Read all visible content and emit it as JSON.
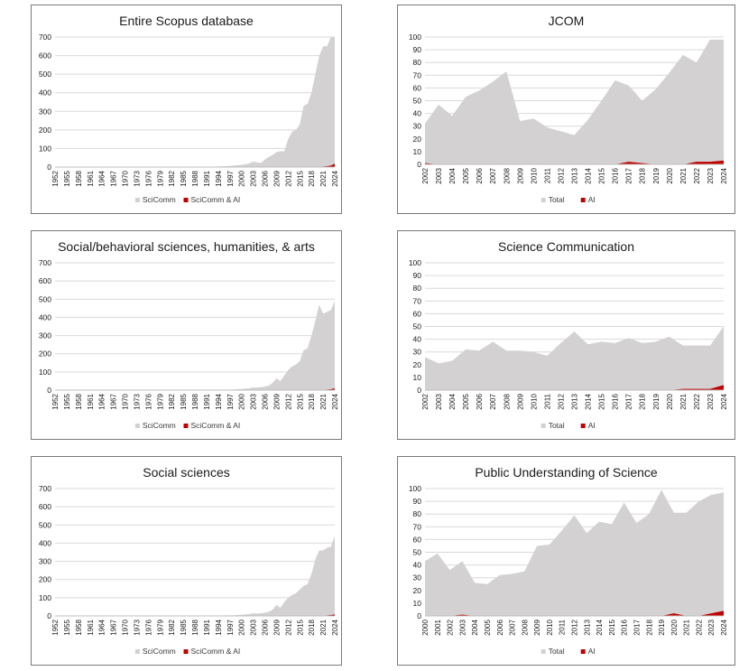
{
  "chart_data": [
    {
      "type": "area",
      "title": "Entire Scopus database",
      "ylim": [
        0,
        700
      ],
      "yticks": [
        0,
        100,
        200,
        300,
        400,
        500,
        600,
        700
      ],
      "grid": true,
      "legend_position": "bottom",
      "x": [
        1952,
        1953,
        1954,
        1955,
        1956,
        1957,
        1958,
        1959,
        1960,
        1961,
        1962,
        1963,
        1964,
        1965,
        1966,
        1967,
        1968,
        1969,
        1970,
        1971,
        1972,
        1973,
        1974,
        1975,
        1976,
        1977,
        1978,
        1979,
        1980,
        1981,
        1982,
        1983,
        1984,
        1985,
        1986,
        1987,
        1988,
        1989,
        1990,
        1991,
        1992,
        1993,
        1994,
        1995,
        1996,
        1997,
        1998,
        1999,
        2000,
        2001,
        2002,
        2003,
        2004,
        2005,
        2006,
        2007,
        2008,
        2009,
        2010,
        2011,
        2012,
        2013,
        2014,
        2015,
        2016,
        2017,
        2018,
        2019,
        2020,
        2021,
        2022,
        2023,
        2024
      ],
      "xticks": [
        1952,
        1955,
        1958,
        1961,
        1964,
        1967,
        1970,
        1973,
        1976,
        1979,
        1982,
        1985,
        1988,
        1991,
        1994,
        1997,
        2000,
        2003,
        2006,
        2009,
        2012,
        2015,
        2018,
        2021,
        2024
      ],
      "series": [
        {
          "name": "SciComm",
          "values": [
            0,
            0,
            0,
            0,
            0,
            0,
            0,
            0,
            0,
            0,
            0,
            0,
            0,
            0,
            0,
            0,
            0,
            0,
            0,
            0,
            0,
            0,
            0,
            0,
            0,
            0,
            0,
            0,
            0,
            0,
            0,
            0,
            0,
            0,
            0,
            0,
            0,
            0,
            0,
            1,
            1,
            2,
            3,
            4,
            5,
            6,
            8,
            10,
            12,
            15,
            20,
            30,
            25,
            22,
            40,
            55,
            65,
            80,
            85,
            85,
            150,
            190,
            200,
            230,
            330,
            340,
            400,
            500,
            600,
            650,
            650,
            700,
            700
          ]
        },
        {
          "name": "SciComm & AI",
          "values": [
            0,
            0,
            0,
            0,
            0,
            0,
            0,
            0,
            0,
            0,
            0,
            0,
            0,
            0,
            0,
            0,
            0,
            0,
            0,
            0,
            0,
            0,
            0,
            0,
            0,
            0,
            0,
            0,
            0,
            0,
            0,
            0,
            0,
            0,
            0,
            0,
            0,
            0,
            0,
            0,
            0,
            0,
            0,
            0,
            0,
            0,
            0,
            0,
            0,
            0,
            0,
            0,
            0,
            0,
            0,
            0,
            0,
            0,
            0,
            0,
            0,
            0,
            0,
            0,
            0,
            0,
            1,
            1,
            2,
            3,
            5,
            8,
            18
          ]
        }
      ]
    },
    {
      "type": "area",
      "title": "JCOM",
      "ylim": [
        0,
        100
      ],
      "yticks": [
        0,
        10,
        20,
        30,
        40,
        50,
        60,
        70,
        80,
        90,
        100
      ],
      "grid": true,
      "legend_position": "bottom",
      "x": [
        2002,
        2003,
        2004,
        2005,
        2006,
        2007,
        2008,
        2009,
        2010,
        2011,
        2012,
        2013,
        2014,
        2015,
        2016,
        2017,
        2018,
        2019,
        2020,
        2021,
        2022,
        2023,
        2024
      ],
      "xticks": [
        2002,
        2003,
        2004,
        2005,
        2006,
        2007,
        2008,
        2009,
        2010,
        2011,
        2012,
        2013,
        2014,
        2015,
        2016,
        2017,
        2018,
        2019,
        2020,
        2021,
        2022,
        2023,
        2024
      ],
      "series": [
        {
          "name": "Total",
          "values": [
            32,
            47,
            38,
            53,
            58,
            65,
            73,
            34,
            36,
            29,
            26,
            23,
            35,
            50,
            66,
            62,
            50,
            59,
            72,
            86,
            80,
            98,
            98
          ]
        },
        {
          "name": "AI",
          "values": [
            1,
            0,
            0,
            0,
            0,
            0,
            0,
            0,
            0,
            0,
            0,
            0,
            0,
            0,
            0,
            2,
            1,
            0,
            0,
            0,
            2,
            2,
            3
          ]
        }
      ]
    },
    {
      "type": "area",
      "title": "Social/behavioral sciences, humanities, & arts",
      "ylim": [
        0,
        700
      ],
      "yticks": [
        0,
        100,
        200,
        300,
        400,
        500,
        600,
        700
      ],
      "grid": true,
      "legend_position": "bottom",
      "x": [
        1952,
        1953,
        1954,
        1955,
        1956,
        1957,
        1958,
        1959,
        1960,
        1961,
        1962,
        1963,
        1964,
        1965,
        1966,
        1967,
        1968,
        1969,
        1970,
        1971,
        1972,
        1973,
        1974,
        1975,
        1976,
        1977,
        1978,
        1979,
        1980,
        1981,
        1982,
        1983,
        1984,
        1985,
        1986,
        1987,
        1988,
        1989,
        1990,
        1991,
        1992,
        1993,
        1994,
        1995,
        1996,
        1997,
        1998,
        1999,
        2000,
        2001,
        2002,
        2003,
        2004,
        2005,
        2006,
        2007,
        2008,
        2009,
        2010,
        2011,
        2012,
        2013,
        2014,
        2015,
        2016,
        2017,
        2018,
        2019,
        2020,
        2021,
        2022,
        2023,
        2024
      ],
      "xticks": [
        1952,
        1955,
        1958,
        1961,
        1964,
        1967,
        1970,
        1973,
        1976,
        1979,
        1982,
        1985,
        1988,
        1991,
        1994,
        1997,
        2000,
        2003,
        2006,
        2009,
        2012,
        2015,
        2018,
        2021,
        2024
      ],
      "series": [
        {
          "name": "SciComm",
          "values": [
            0,
            0,
            0,
            0,
            0,
            0,
            0,
            0,
            0,
            0,
            0,
            0,
            0,
            0,
            0,
            0,
            0,
            0,
            0,
            0,
            0,
            0,
            0,
            0,
            0,
            0,
            0,
            0,
            0,
            0,
            0,
            0,
            0,
            0,
            0,
            0,
            0,
            0,
            0,
            0,
            1,
            1,
            2,
            2,
            3,
            3,
            4,
            5,
            6,
            8,
            10,
            15,
            14,
            16,
            20,
            25,
            40,
            65,
            50,
            80,
            110,
            130,
            140,
            160,
            220,
            230,
            300,
            380,
            470,
            420,
            430,
            440,
            490
          ]
        },
        {
          "name": "SciComm & AI",
          "values": [
            0,
            0,
            0,
            0,
            0,
            0,
            0,
            0,
            0,
            0,
            0,
            0,
            0,
            0,
            0,
            0,
            0,
            0,
            0,
            0,
            0,
            0,
            0,
            0,
            0,
            0,
            0,
            0,
            0,
            0,
            0,
            0,
            0,
            0,
            0,
            0,
            0,
            0,
            0,
            0,
            0,
            0,
            0,
            0,
            0,
            0,
            0,
            0,
            0,
            0,
            0,
            0,
            0,
            0,
            0,
            0,
            0,
            0,
            0,
            0,
            0,
            0,
            0,
            0,
            0,
            0,
            0,
            1,
            1,
            2,
            3,
            5,
            10
          ]
        }
      ]
    },
    {
      "type": "area",
      "title": "Science Communication",
      "ylim": [
        0,
        100
      ],
      "yticks": [
        0,
        10,
        20,
        30,
        40,
        50,
        60,
        70,
        80,
        90,
        100
      ],
      "grid": true,
      "legend_position": "bottom",
      "x": [
        2002,
        2003,
        2004,
        2005,
        2006,
        2007,
        2008,
        2009,
        2010,
        2011,
        2012,
        2013,
        2014,
        2015,
        2016,
        2017,
        2018,
        2019,
        2020,
        2021,
        2022,
        2023,
        2024
      ],
      "xticks": [
        2002,
        2003,
        2004,
        2005,
        2006,
        2007,
        2008,
        2009,
        2010,
        2011,
        2012,
        2013,
        2014,
        2015,
        2016,
        2017,
        2018,
        2019,
        2020,
        2021,
        2022,
        2023,
        2024
      ],
      "series": [
        {
          "name": "Total",
          "values": [
            26,
            21,
            23,
            32,
            31,
            38,
            31,
            31,
            30,
            27,
            37,
            46,
            36,
            38,
            37,
            41,
            37,
            38,
            42,
            35,
            35,
            35,
            50
          ]
        },
        {
          "name": "AI",
          "values": [
            0,
            0,
            0,
            0,
            0,
            0,
            0,
            0,
            0,
            0,
            0,
            0,
            0,
            0,
            0,
            0,
            0,
            0,
            0,
            1,
            1,
            1,
            4
          ]
        }
      ]
    },
    {
      "type": "area",
      "title": "Social sciences",
      "ylim": [
        0,
        700
      ],
      "yticks": [
        0,
        100,
        200,
        300,
        400,
        500,
        600,
        700
      ],
      "grid": true,
      "legend_position": "bottom",
      "x": [
        1952,
        1953,
        1954,
        1955,
        1956,
        1957,
        1958,
        1959,
        1960,
        1961,
        1962,
        1963,
        1964,
        1965,
        1966,
        1967,
        1968,
        1969,
        1970,
        1971,
        1972,
        1973,
        1974,
        1975,
        1976,
        1977,
        1978,
        1979,
        1980,
        1981,
        1982,
        1983,
        1984,
        1985,
        1986,
        1987,
        1988,
        1989,
        1990,
        1991,
        1992,
        1993,
        1994,
        1995,
        1996,
        1997,
        1998,
        1999,
        2000,
        2001,
        2002,
        2003,
        2004,
        2005,
        2006,
        2007,
        2008,
        2009,
        2010,
        2011,
        2012,
        2013,
        2014,
        2015,
        2016,
        2017,
        2018,
        2019,
        2020,
        2021,
        2022,
        2023,
        2024
      ],
      "xticks": [
        1952,
        1955,
        1958,
        1961,
        1964,
        1967,
        1970,
        1973,
        1976,
        1979,
        1982,
        1985,
        1988,
        1991,
        1994,
        1997,
        2000,
        2003,
        2006,
        2009,
        2012,
        2015,
        2018,
        2021,
        2024
      ],
      "series": [
        {
          "name": "SciComm",
          "values": [
            0,
            0,
            0,
            0,
            0,
            0,
            0,
            0,
            0,
            0,
            0,
            0,
            0,
            0,
            0,
            0,
            0,
            0,
            0,
            0,
            0,
            0,
            0,
            0,
            0,
            0,
            0,
            0,
            0,
            0,
            0,
            0,
            0,
            0,
            0,
            0,
            0,
            0,
            0,
            0,
            1,
            1,
            2,
            2,
            3,
            3,
            4,
            5,
            6,
            8,
            10,
            14,
            13,
            15,
            18,
            22,
            35,
            60,
            45,
            75,
            100,
            115,
            125,
            145,
            165,
            175,
            230,
            310,
            360,
            360,
            375,
            380,
            440
          ]
        },
        {
          "name": "SciComm & AI",
          "values": [
            0,
            0,
            0,
            0,
            0,
            0,
            0,
            0,
            0,
            0,
            0,
            0,
            0,
            0,
            0,
            0,
            0,
            0,
            0,
            0,
            0,
            0,
            0,
            0,
            0,
            0,
            0,
            0,
            0,
            0,
            0,
            0,
            0,
            0,
            0,
            0,
            0,
            0,
            0,
            0,
            0,
            0,
            0,
            0,
            0,
            0,
            0,
            0,
            0,
            0,
            0,
            0,
            0,
            0,
            0,
            0,
            0,
            0,
            0,
            0,
            0,
            0,
            0,
            0,
            0,
            0,
            0,
            1,
            1,
            2,
            3,
            5,
            8
          ]
        }
      ]
    },
    {
      "type": "area",
      "title": "Public Understanding of Science",
      "ylim": [
        0,
        100
      ],
      "yticks": [
        0,
        10,
        20,
        30,
        40,
        50,
        60,
        70,
        80,
        90,
        100
      ],
      "grid": true,
      "legend_position": "bottom",
      "x": [
        2000,
        2001,
        2002,
        2003,
        2004,
        2005,
        2006,
        2007,
        2008,
        2009,
        2010,
        2011,
        2012,
        2013,
        2014,
        2015,
        2016,
        2017,
        2018,
        2019,
        2020,
        2021,
        2022,
        2023,
        2024
      ],
      "xticks": [
        2000,
        2001,
        2002,
        2003,
        2004,
        2005,
        2006,
        2007,
        2008,
        2009,
        2010,
        2011,
        2012,
        2013,
        2014,
        2015,
        2016,
        2017,
        2018,
        2019,
        2020,
        2021,
        2022,
        2023,
        2024
      ],
      "series": [
        {
          "name": "Total",
          "values": [
            43,
            49,
            36,
            43,
            26,
            25,
            32,
            33,
            35,
            55,
            56,
            67,
            79,
            65,
            74,
            72,
            89,
            73,
            80,
            99,
            81,
            81,
            90,
            95,
            97
          ]
        },
        {
          "name": "AI",
          "values": [
            0,
            0,
            0,
            1,
            0,
            0,
            0,
            0,
            0,
            0,
            0,
            0,
            0,
            0,
            0,
            0,
            0,
            0,
            0,
            0,
            2,
            0,
            0,
            2,
            4
          ]
        }
      ]
    }
  ],
  "colors": {
    "total_fill": "#d3d1d1",
    "ai_fill": "#c00000",
    "grid": "#d9d9d9",
    "axis_text": "#1a1a1a",
    "border": "#7a7a7a"
  }
}
